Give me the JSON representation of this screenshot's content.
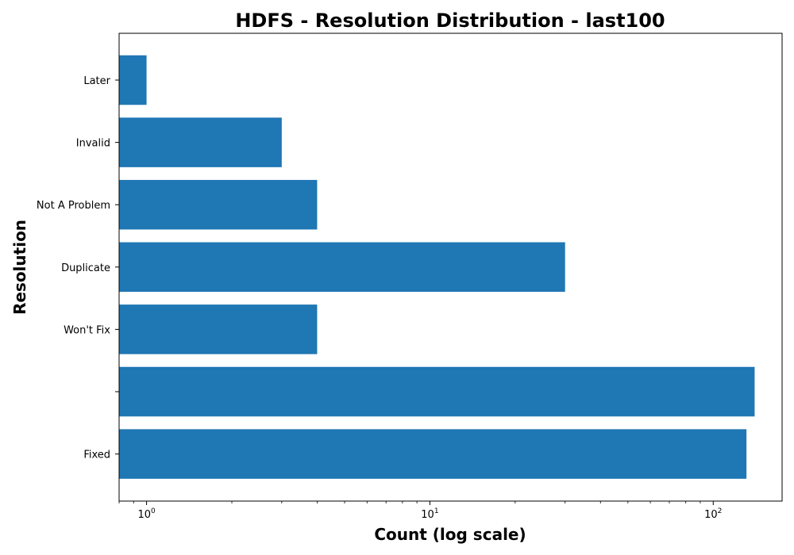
{
  "chart_data": {
    "type": "bar",
    "orientation": "horizontal",
    "title": "HDFS - Resolution Distribution - last100",
    "xlabel": "Count (log scale)",
    "ylabel": "Resolution",
    "x_scale": "log",
    "xlim": [
      0.8,
      175
    ],
    "x_ticks": [
      {
        "value": 1,
        "base": "10",
        "exp": "0"
      },
      {
        "value": 10,
        "base": "10",
        "exp": "1"
      },
      {
        "value": 100,
        "base": "10",
        "exp": "2"
      }
    ],
    "categories": [
      "Later",
      "Invalid",
      "Not A Problem",
      "Duplicate",
      "Won't Fix",
      "",
      "Fixed"
    ],
    "values": [
      1,
      3,
      4,
      30,
      4,
      140,
      131
    ],
    "bar_color": "#1f77b4",
    "grid": false,
    "legend": false
  }
}
